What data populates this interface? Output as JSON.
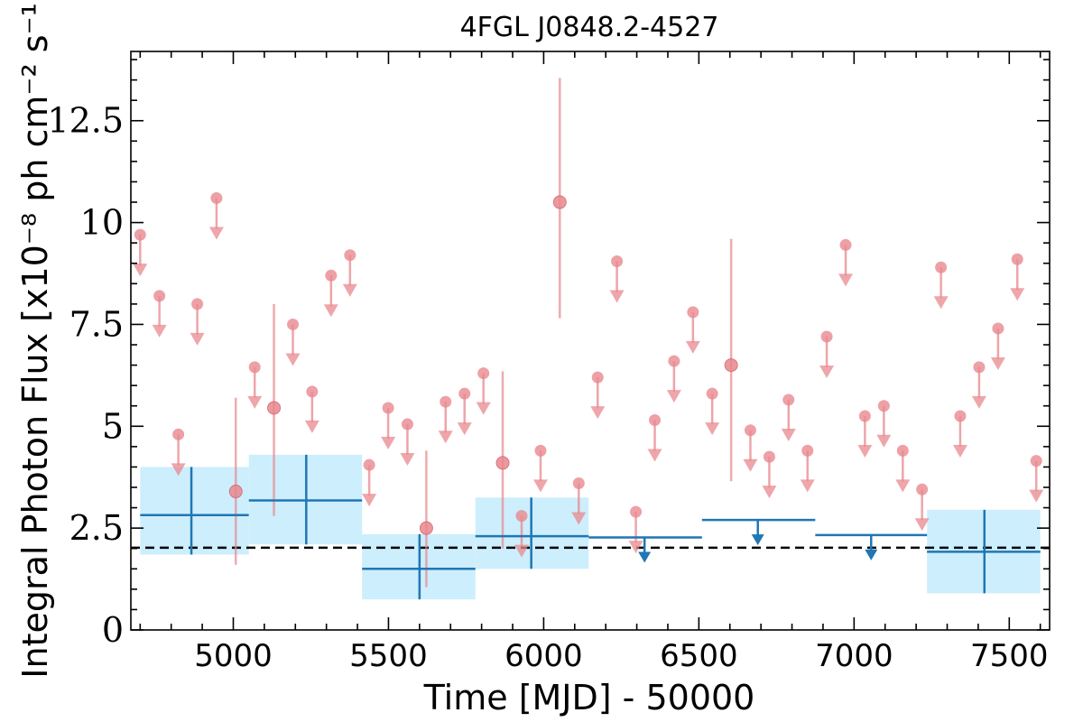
{
  "chart_data": {
    "type": "scatter",
    "title": "4FGL J0848.2-4527",
    "xlabel": "Time [MJD] - 50000",
    "ylabel": "Integral Photon Flux [x10⁻⁸ ph cm⁻² s⁻¹]",
    "xlim": [
      4670,
      7630
    ],
    "ylim": [
      0,
      14.2
    ],
    "x_ticks": [
      5000,
      5500,
      6000,
      6500,
      7000,
      7500
    ],
    "y_ticks": [
      0,
      2.5,
      5,
      7.5,
      10,
      12.5
    ],
    "y_tick_labels": [
      "0",
      "2.5",
      "5",
      "7.5",
      "10",
      "12.5"
    ],
    "reference_line": {
      "y": 2.02,
      "style": "dashed",
      "color": "#000000"
    },
    "colors": {
      "fine": "#e8888e",
      "coarse": "#1f77b4",
      "band": "#cdeefc"
    },
    "fine_series": {
      "upper_limits": [
        [
          4700,
          9.7
        ],
        [
          4762,
          8.2
        ],
        [
          4823,
          4.8
        ],
        [
          4884,
          8.0
        ],
        [
          4946,
          10.6
        ],
        [
          5069,
          6.45
        ],
        [
          5192,
          7.5
        ],
        [
          5254,
          5.85
        ],
        [
          5315,
          8.7
        ],
        [
          5376,
          9.2
        ],
        [
          5438,
          4.05
        ],
        [
          5499,
          5.45
        ],
        [
          5561,
          5.05
        ],
        [
          5684,
          5.6
        ],
        [
          5745,
          5.8
        ],
        [
          5806,
          6.3
        ],
        [
          5929,
          2.8
        ],
        [
          5990,
          4.4
        ],
        [
          6113,
          3.6
        ],
        [
          6174,
          6.2
        ],
        [
          6297,
          2.9
        ],
        [
          6236,
          9.05
        ],
        [
          6358,
          5.15
        ],
        [
          6420,
          6.6
        ],
        [
          6481,
          7.8
        ],
        [
          6543,
          5.8
        ],
        [
          6666,
          4.9
        ],
        [
          6727,
          4.25
        ],
        [
          6789,
          5.65
        ],
        [
          6850,
          4.4
        ],
        [
          6912,
          7.2
        ],
        [
          6973,
          9.45
        ],
        [
          7035,
          5.25
        ],
        [
          7096,
          5.5
        ],
        [
          7157,
          4.4
        ],
        [
          7219,
          3.45
        ],
        [
          7280,
          8.9
        ],
        [
          7342,
          5.25
        ],
        [
          7403,
          6.45
        ],
        [
          7464,
          7.4
        ],
        [
          7526,
          9.1
        ],
        [
          7587,
          4.15
        ]
      ],
      "detections": [
        {
          "x": 5008,
          "y": 3.4,
          "ylo": 1.6,
          "yhi": 5.7
        },
        {
          "x": 5131,
          "y": 5.45,
          "ylo": 2.8,
          "yhi": 8.0
        },
        {
          "x": 5622,
          "y": 2.5,
          "ylo": 1.05,
          "yhi": 4.4
        },
        {
          "x": 5868,
          "y": 4.1,
          "ylo": 2.0,
          "yhi": 6.35
        },
        {
          "x": 6052,
          "y": 10.5,
          "ylo": 7.65,
          "yhi": 13.55
        },
        {
          "x": 6604,
          "y": 6.5,
          "ylo": 3.65,
          "yhi": 9.6
        }
      ]
    },
    "coarse_series": {
      "detections": [
        {
          "x": 4865,
          "xlo": 4700,
          "xhi": 5050,
          "y": 2.82,
          "ylo": 1.85,
          "yhi": 4.0,
          "band_lo": 1.85,
          "band_hi": 4.0
        },
        {
          "x": 5235,
          "xlo": 5050,
          "xhi": 5415,
          "y": 3.18,
          "ylo": 2.1,
          "yhi": 4.3,
          "band_lo": 2.1,
          "band_hi": 4.3
        },
        {
          "x": 5600,
          "xlo": 5415,
          "xhi": 5780,
          "y": 1.5,
          "ylo": 0.75,
          "yhi": 2.35,
          "band_lo": 0.75,
          "band_hi": 2.35
        },
        {
          "x": 5960,
          "xlo": 5780,
          "xhi": 6145,
          "y": 2.3,
          "ylo": 1.5,
          "yhi": 3.25,
          "band_lo": 1.5,
          "band_hi": 3.25
        },
        {
          "x": 7420,
          "xlo": 7235,
          "xhi": 7600,
          "y": 1.92,
          "ylo": 0.9,
          "yhi": 2.95,
          "band_lo": 0.9,
          "band_hi": 2.95
        }
      ],
      "upper_limits": [
        {
          "x": 6325,
          "xlo": 6145,
          "xhi": 6510,
          "y": 2.27
        },
        {
          "x": 6690,
          "xlo": 6510,
          "xhi": 6875,
          "y": 2.7
        },
        {
          "x": 7055,
          "xlo": 6875,
          "xhi": 7235,
          "y": 2.33
        }
      ]
    }
  }
}
